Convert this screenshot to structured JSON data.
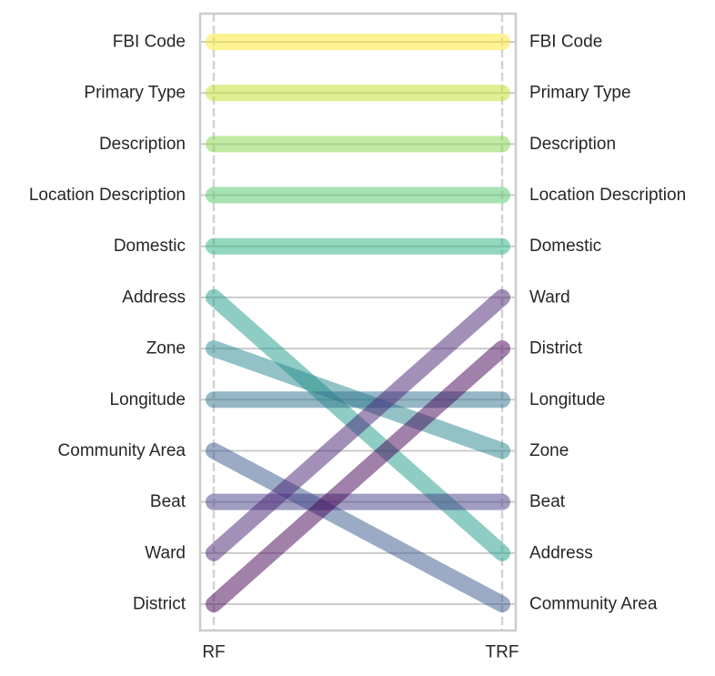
{
  "chart_data": {
    "type": "bump",
    "x": [
      "RF",
      "TRF"
    ],
    "left_ranking": [
      "FBI Code",
      "Primary Type",
      "Description",
      "Location Description",
      "Domestic",
      "Address",
      "Zone",
      "Longitude",
      "Community Area",
      "Beat",
      "Ward",
      "District"
    ],
    "right_ranking": [
      "FBI Code",
      "Primary Type",
      "Description",
      "Location Description",
      "Domestic",
      "Ward",
      "District",
      "Longitude",
      "Zone",
      "Beat",
      "Address",
      "Community Area"
    ],
    "series": [
      {
        "label": "FBI Code",
        "color": "#fde725"
      },
      {
        "label": "Primary Type",
        "color": "#c2df23"
      },
      {
        "label": "Description",
        "color": "#86d549"
      },
      {
        "label": "Location Description",
        "color": "#52c569"
      },
      {
        "label": "Domestic",
        "color": "#2ab07f"
      },
      {
        "label": "Address",
        "color": "#1e9b8a"
      },
      {
        "label": "Zone",
        "color": "#25858e"
      },
      {
        "label": "Longitude",
        "color": "#2d708e"
      },
      {
        "label": "Community Area",
        "color": "#38588c"
      },
      {
        "label": "Beat",
        "color": "#433e85"
      },
      {
        "label": "Ward",
        "color": "#482173"
      },
      {
        "label": "District",
        "color": "#440154"
      }
    ],
    "grid": true
  }
}
